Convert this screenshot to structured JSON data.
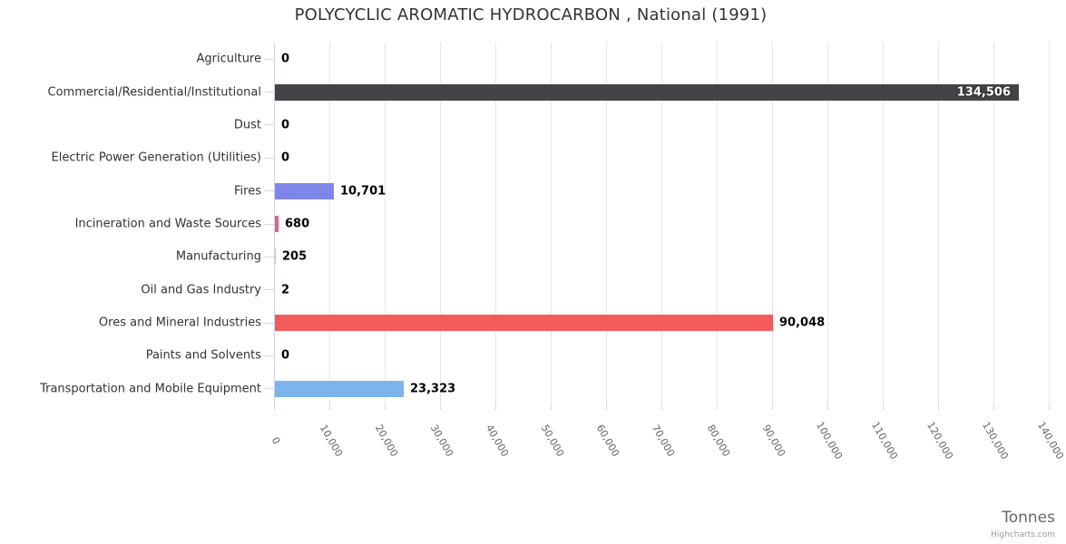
{
  "chart_data": {
    "type": "bar",
    "orientation": "horizontal",
    "title": "POLYCYCLIC AROMATIC HYDROCARBON , National (1991)",
    "xlabel": "Tonnes",
    "ylabel": "",
    "categories": [
      "Agriculture",
      "Commercial/Residential/Institutional",
      "Dust",
      "Electric Power Generation (Utilities)",
      "Fires",
      "Incineration and Waste Sources",
      "Manufacturing",
      "Oil and Gas Industry",
      "Ores and Mineral Industries",
      "Paints and Solvents",
      "Transportation and Mobile Equipment"
    ],
    "values": [
      0,
      134506,
      0,
      0,
      10701,
      680,
      205,
      2,
      90048,
      0,
      23323
    ],
    "value_labels": [
      "0",
      "134,506",
      "0",
      "0",
      "10,701",
      "680",
      "205",
      "2",
      "90,048",
      "0",
      "23,323"
    ],
    "bar_colors": [
      "#7cb5ec",
      "#434348",
      "#90ed7d",
      "#f7a35c",
      "#8085e9",
      "#f15c80",
      "#e4d354",
      "#2b908f",
      "#f45b5b",
      "#91e8e1",
      "#7cb5ec"
    ],
    "xlim": [
      0,
      140000
    ],
    "x_tick_interval": 10000,
    "x_tick_labels": [
      "0",
      "10,000",
      "20,000",
      "30,000",
      "40,000",
      "50,000",
      "60,000",
      "70,000",
      "80,000",
      "90,000",
      "100,000",
      "110,000",
      "120,000",
      "130,000",
      "140,000"
    ],
    "grid": true,
    "legend": "none"
  },
  "credits": {
    "label": "Highcharts.com"
  },
  "colors": {
    "title_text": "#333333",
    "category_label_text": "#333333",
    "axis_label_text": "#666666",
    "data_label_text": "#000000",
    "data_label_inside_text": "#ffffff",
    "data_label_outline": "#333333",
    "grid_line": "#e6e6e6",
    "axis_line": "#ccd6eb",
    "tick_mark": "#ccd6eb",
    "axis_title_text": "#666666",
    "credits_text": "#999999",
    "background": "#ffffff"
  }
}
